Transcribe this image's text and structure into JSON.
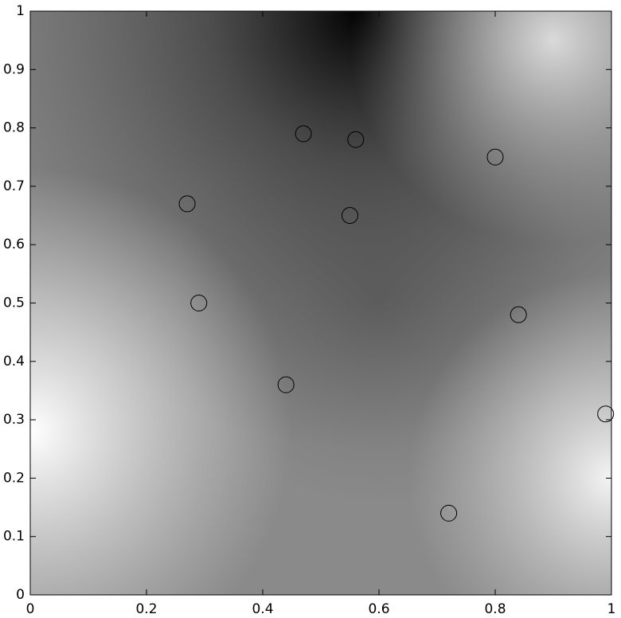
{
  "chart_data": {
    "type": "scatter",
    "x": [
      0.47,
      0.56,
      0.8,
      0.27,
      0.55,
      0.29,
      0.84,
      0.44,
      0.99,
      0.72
    ],
    "values": [
      0.79,
      0.78,
      0.75,
      0.67,
      0.65,
      0.5,
      0.48,
      0.36,
      0.31,
      0.14
    ],
    "color": "#000000",
    "xlim": [
      0,
      1
    ],
    "xticks": [
      0,
      0.2,
      0.4,
      0.6,
      0.8,
      1
    ],
    "ylim": [
      0,
      1
    ],
    "yticks": [
      0,
      0.1,
      0.2,
      0.3,
      0.4,
      0.5,
      0.6,
      0.7,
      0.8,
      0.9,
      1
    ]
  }
}
